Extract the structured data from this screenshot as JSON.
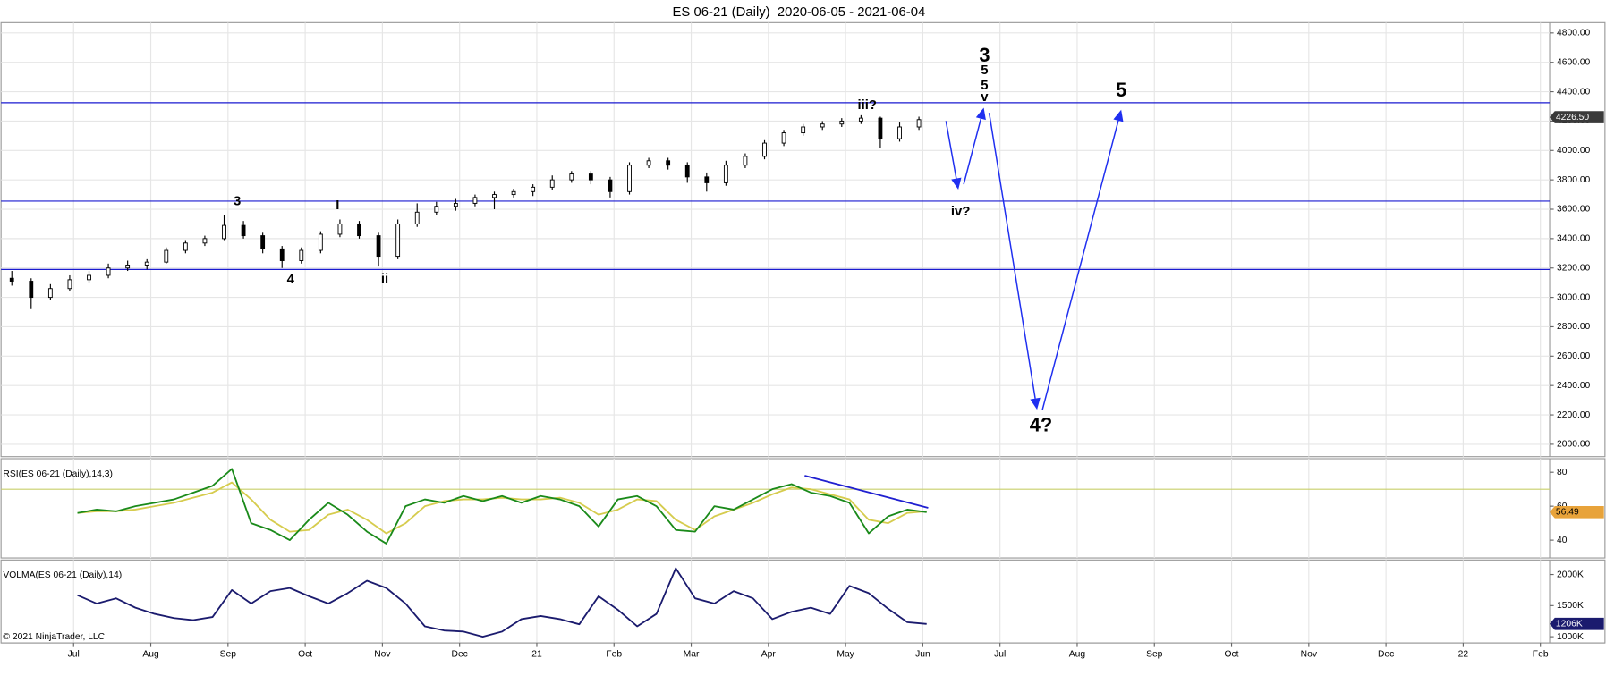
{
  "chart_data": [
    {
      "type": "candlestick",
      "title": "ES 06-21 (Daily)  2020-06-05 - 2021-06-04",
      "xlim": [
        0.06,
        20.12
      ],
      "ylim": [
        1916,
        4870
      ],
      "yticks": [
        {
          "value": 2000,
          "label": "2000.00"
        },
        {
          "value": 2200,
          "label": "2200.00"
        },
        {
          "value": 2400,
          "label": "2400.00"
        },
        {
          "value": 2600,
          "label": "2600.00"
        },
        {
          "value": 2800,
          "label": "2800.00"
        },
        {
          "value": 3000,
          "label": "3000.00"
        },
        {
          "value": 3200,
          "label": "3200.00"
        },
        {
          "value": 3400,
          "label": "3400.00"
        },
        {
          "value": 3600,
          "label": "3600.00"
        },
        {
          "value": 3800,
          "label": "3800.00"
        },
        {
          "value": 4000,
          "label": "4000.00"
        },
        {
          "value": 4200,
          "label": "4200.00"
        },
        {
          "value": 4400,
          "label": "4400.00"
        },
        {
          "value": 4600,
          "label": "4600.00"
        },
        {
          "value": 4800,
          "label": "4800.00"
        }
      ],
      "grid": true,
      "x": [
        0.2,
        0.45,
        0.7,
        0.95,
        1.2,
        1.45,
        1.7,
        1.95,
        2.2,
        2.45,
        2.7,
        2.95,
        3.2,
        3.45,
        3.7,
        3.95,
        4.2,
        4.45,
        4.7,
        4.95,
        5.2,
        5.45,
        5.7,
        5.95,
        6.2,
        6.45,
        6.7,
        6.95,
        7.2,
        7.45,
        7.7,
        7.95,
        8.2,
        8.45,
        8.7,
        8.95,
        9.2,
        9.45,
        9.7,
        9.95,
        10.2,
        10.45,
        10.7,
        10.95,
        11.2,
        11.45,
        11.7,
        11.95
      ],
      "open": [
        3130,
        3110,
        3000,
        3060,
        3120,
        3150,
        3200,
        3220,
        3240,
        3320,
        3370,
        3400,
        3490,
        3420,
        3330,
        3250,
        3320,
        3430,
        3500,
        3420,
        3280,
        3500,
        3580,
        3620,
        3640,
        3680,
        3700,
        3720,
        3750,
        3800,
        3840,
        3800,
        3720,
        3900,
        3930,
        3900,
        3820,
        3780,
        3900,
        3960,
        4050,
        4120,
        4160,
        4180,
        4200,
        4220,
        4080,
        4160
      ],
      "high": [
        3180,
        3130,
        3090,
        3150,
        3180,
        3230,
        3250,
        3260,
        3340,
        3390,
        3420,
        3560,
        3520,
        3440,
        3350,
        3340,
        3450,
        3530,
        3520,
        3440,
        3530,
        3640,
        3650,
        3670,
        3700,
        3720,
        3740,
        3770,
        3830,
        3860,
        3860,
        3820,
        3920,
        3950,
        3950,
        3920,
        3850,
        3930,
        3980,
        4070,
        4140,
        4180,
        4200,
        4220,
        4240,
        4230,
        4190,
        4230
      ],
      "low": [
        3080,
        2920,
        2980,
        3040,
        3100,
        3130,
        3180,
        3190,
        3230,
        3300,
        3350,
        3390,
        3400,
        3300,
        3200,
        3230,
        3300,
        3410,
        3400,
        3210,
        3260,
        3480,
        3560,
        3590,
        3620,
        3600,
        3680,
        3690,
        3730,
        3780,
        3770,
        3680,
        3700,
        3880,
        3870,
        3780,
        3720,
        3760,
        3880,
        3940,
        4030,
        4100,
        4140,
        4160,
        4180,
        4020,
        4060,
        4140
      ],
      "close": [
        3110,
        3000,
        3060,
        3120,
        3150,
        3200,
        3220,
        3240,
        3320,
        3370,
        3400,
        3490,
        3420,
        3330,
        3250,
        3320,
        3430,
        3500,
        3420,
        3280,
        3500,
        3580,
        3620,
        3640,
        3680,
        3700,
        3720,
        3750,
        3800,
        3840,
        3800,
        3720,
        3900,
        3930,
        3900,
        3820,
        3780,
        3900,
        3960,
        4050,
        4120,
        4160,
        4180,
        4200,
        4220,
        4080,
        4160,
        4210
      ],
      "up_color": "#ffffff",
      "down_color": "#000000",
      "levels": [
        4325,
        3655,
        3190
      ],
      "level_color": "#1a1ad0",
      "last_value": {
        "value": 4226.5,
        "label": "4226.50"
      },
      "arrow_color": "#1f2ff0",
      "arrows": [
        {
          "x": [
            12.3,
            12.46
          ],
          "y": [
            4200,
            3734
          ]
        },
        {
          "x": [
            12.53,
            12.79
          ],
          "y": [
            3769,
            4291
          ]
        },
        {
          "x": [
            12.86,
            13.48
          ],
          "y": [
            4256,
            2236
          ]
        },
        {
          "x": [
            13.55,
            14.57
          ],
          "y": [
            2236,
            4277
          ]
        }
      ],
      "annotations": [
        {
          "text": "3",
          "x": 3.12,
          "y": 3650,
          "color": "#000000"
        },
        {
          "text": "4",
          "x": 3.81,
          "y": 3120,
          "color": "#000000"
        },
        {
          "text": "I",
          "x": 4.42,
          "y": 3624,
          "color": "#000000"
        },
        {
          "text": "ii",
          "x": 5.03,
          "y": 3122,
          "color": "#000000"
        },
        {
          "text": "iii?",
          "x": 11.28,
          "y": 4305,
          "color": "#1a1a50"
        },
        {
          "text": "iv?",
          "x": 12.49,
          "y": 3580,
          "color": "#000000"
        },
        {
          "text": "3",
          "x": 12.8,
          "y": 4640,
          "color": "#e01010"
        },
        {
          "text": "5",
          "x": 12.8,
          "y": 4542,
          "color": "#1a1ad0"
        },
        {
          "text": "5",
          "x": 12.8,
          "y": 4438,
          "color": "#000000"
        },
        {
          "text": "v",
          "x": 12.8,
          "y": 4361,
          "color": "#000000"
        },
        {
          "text": "5",
          "x": 14.57,
          "y": 4403,
          "color": "#e01010"
        },
        {
          "text": "4?",
          "x": 13.53,
          "y": 2124,
          "color": "#e01010"
        }
      ]
    },
    {
      "type": "line",
      "label": "RSI(ES 06-21 (Daily),14,3)",
      "xlim": [
        0.06,
        20.12
      ],
      "ylim": [
        29.5,
        88
      ],
      "yticks": [
        40,
        60,
        80
      ],
      "x": [
        1.05,
        1.3,
        1.55,
        1.8,
        2.05,
        2.3,
        2.55,
        2.8,
        3.05,
        3.3,
        3.55,
        3.8,
        4.05,
        4.3,
        4.55,
        4.8,
        5.05,
        5.3,
        5.55,
        5.8,
        6.05,
        6.3,
        6.55,
        6.8,
        7.05,
        7.3,
        7.55,
        7.8,
        8.05,
        8.3,
        8.55,
        8.8,
        9.05,
        9.3,
        9.55,
        9.8,
        10.05,
        10.3,
        10.55,
        10.8,
        11.05,
        11.3,
        11.55,
        11.8,
        12.05
      ],
      "series": [
        {
          "color": "#d6cc4e",
          "values": [
            56,
            57,
            57,
            58,
            60,
            62,
            65,
            68,
            74,
            64,
            52,
            45,
            46,
            55,
            58,
            52,
            44,
            50,
            60,
            63,
            64,
            64,
            65,
            64,
            64,
            65,
            62,
            55,
            58,
            64,
            63,
            52,
            46,
            54,
            58,
            62,
            67,
            71,
            70,
            67,
            64,
            52,
            50,
            56,
            57
          ]
        },
        {
          "color": "#1a8a1a",
          "values": [
            56,
            58,
            57,
            60,
            62,
            64,
            68,
            72,
            82,
            50,
            46,
            40,
            52,
            62,
            55,
            45,
            38,
            60,
            64,
            62,
            66,
            63,
            66,
            62,
            66,
            64,
            60,
            48,
            64,
            66,
            60,
            46,
            45,
            60,
            58,
            64,
            70,
            73,
            68,
            66,
            62,
            44,
            54,
            58,
            56.49
          ]
        }
      ],
      "levels": [
        70
      ],
      "level_color": "#c8cf6a",
      "trendline": {
        "x": [
          10.47,
          12.07
        ],
        "y": [
          78,
          59
        ],
        "color": "#2020d0"
      },
      "last_value": 56.49
    },
    {
      "type": "line",
      "label": "VOLMA(ES 06-21 (Daily),14)",
      "xlim": [
        0.06,
        20.12
      ],
      "ylim": [
        900000,
        2233000
      ],
      "yticks": [
        {
          "value": 1000000,
          "label": "1000K"
        },
        {
          "value": 1500000,
          "label": "1500K"
        },
        {
          "value": 2000000,
          "label": "2000K"
        }
      ],
      "x": [
        1.05,
        1.3,
        1.55,
        1.8,
        2.05,
        2.3,
        2.55,
        2.8,
        3.05,
        3.3,
        3.55,
        3.8,
        4.05,
        4.3,
        4.55,
        4.8,
        5.05,
        5.3,
        5.55,
        5.8,
        6.05,
        6.3,
        6.55,
        6.8,
        7.05,
        7.3,
        7.55,
        7.8,
        8.05,
        8.3,
        8.55,
        8.8,
        9.05,
        9.3,
        9.55,
        9.8,
        10.05,
        10.3,
        10.55,
        10.8,
        11.05,
        11.3,
        11.55,
        11.8,
        12.05
      ],
      "series": [
        {
          "color": "#1b1b6e",
          "values": [
            1667000,
            1533000,
            1617000,
            1467000,
            1367000,
            1300000,
            1267000,
            1317000,
            1750000,
            1533000,
            1733000,
            1783000,
            1650000,
            1533000,
            1700000,
            1900000,
            1783000,
            1533000,
            1167000,
            1100000,
            1083000,
            1000000,
            1083000,
            1283000,
            1333000,
            1283000,
            1200000,
            1650000,
            1433000,
            1167000,
            1367000,
            2100000,
            1617000,
            1533000,
            1733000,
            1617000,
            1283000,
            1400000,
            1467000,
            1367000,
            1817000,
            1700000,
            1450000,
            1233000,
            1206000
          ]
        }
      ],
      "last_value": {
        "value": 1206000,
        "label": "1206K"
      },
      "xticks": [
        {
          "value": 1,
          "label": "Jul"
        },
        {
          "value": 2,
          "label": "Aug"
        },
        {
          "value": 3,
          "label": "Sep"
        },
        {
          "value": 4,
          "label": "Oct"
        },
        {
          "value": 5,
          "label": "Nov"
        },
        {
          "value": 6,
          "label": "Dec"
        },
        {
          "value": 7,
          "label": "21"
        },
        {
          "value": 8,
          "label": "Feb"
        },
        {
          "value": 9,
          "label": "Mar"
        },
        {
          "value": 10,
          "label": "Apr"
        },
        {
          "value": 11,
          "label": "May"
        },
        {
          "value": 12,
          "label": "Jun"
        },
        {
          "value": 13,
          "label": "Jul"
        },
        {
          "value": 14,
          "label": "Aug"
        },
        {
          "value": 15,
          "label": "Sep"
        },
        {
          "value": 16,
          "label": "Oct"
        },
        {
          "value": 17,
          "label": "Nov"
        },
        {
          "value": 18,
          "label": "Dec"
        },
        {
          "value": 19,
          "label": "22"
        },
        {
          "value": 20,
          "label": "Feb"
        }
      ],
      "copyright": "© 2021 NinjaTrader, LLC"
    }
  ]
}
